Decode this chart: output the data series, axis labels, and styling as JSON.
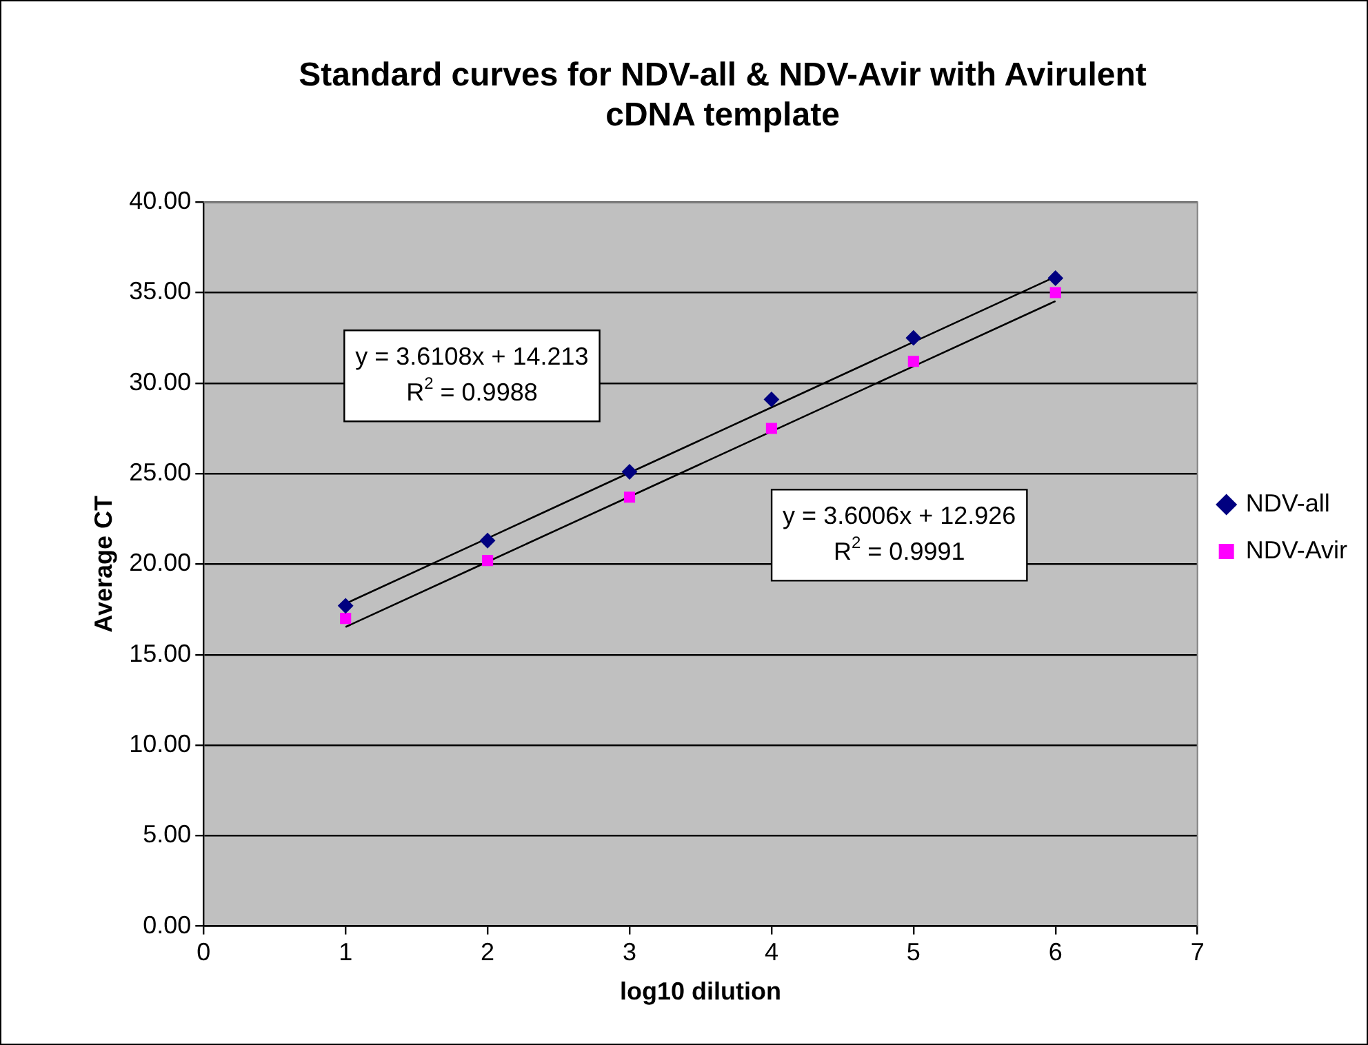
{
  "chart_data": {
    "type": "scatter",
    "title": "Standard curves for NDV-all & NDV-Avir with Avirulent cDNA template",
    "xlabel": "log10 dilution",
    "ylabel": "Average CT",
    "x": [
      1,
      2,
      3,
      4,
      5,
      6
    ],
    "series": [
      {
        "name": "NDV-all",
        "color": "#000080",
        "marker": "diamond",
        "values": [
          17.7,
          21.3,
          25.1,
          29.1,
          32.5,
          35.8
        ]
      },
      {
        "name": "NDV-Avir",
        "color": "#ff00ff",
        "marker": "square",
        "values": [
          17.0,
          20.2,
          23.7,
          27.5,
          31.2,
          35.0
        ]
      },
      {
        "type": "line",
        "color": "#000000",
        "values": [
          17.82,
          21.43,
          25.05,
          28.66,
          32.27,
          35.88
        ]
      },
      {
        "type": "line",
        "color": "#000000",
        "values": [
          16.53,
          20.13,
          23.73,
          27.33,
          30.93,
          34.53
        ]
      }
    ],
    "xlim": [
      0,
      7
    ],
    "xticks": [
      0,
      1,
      2,
      3,
      4,
      5,
      6,
      7
    ],
    "ylim": [
      0,
      40
    ],
    "yticks": [
      {
        "value": 0,
        "label": "0.00"
      },
      {
        "value": 5,
        "label": "5.00"
      },
      {
        "value": 10,
        "label": "10.00"
      },
      {
        "value": 15,
        "label": "15.00"
      },
      {
        "value": 20,
        "label": "20.00"
      },
      {
        "value": 25,
        "label": "25.00"
      },
      {
        "value": 30,
        "label": "30.00"
      },
      {
        "value": 35,
        "label": "35.00"
      },
      {
        "value": 40,
        "label": "40.00"
      }
    ],
    "annotations": [
      "y = 3.6108x + 14.213\nR$^{2}$ = 0.9988",
      "y = 3.6006x + 12.926\nR$^{2}$ = 0.9991"
    ],
    "grid": "y",
    "legend": "right"
  }
}
